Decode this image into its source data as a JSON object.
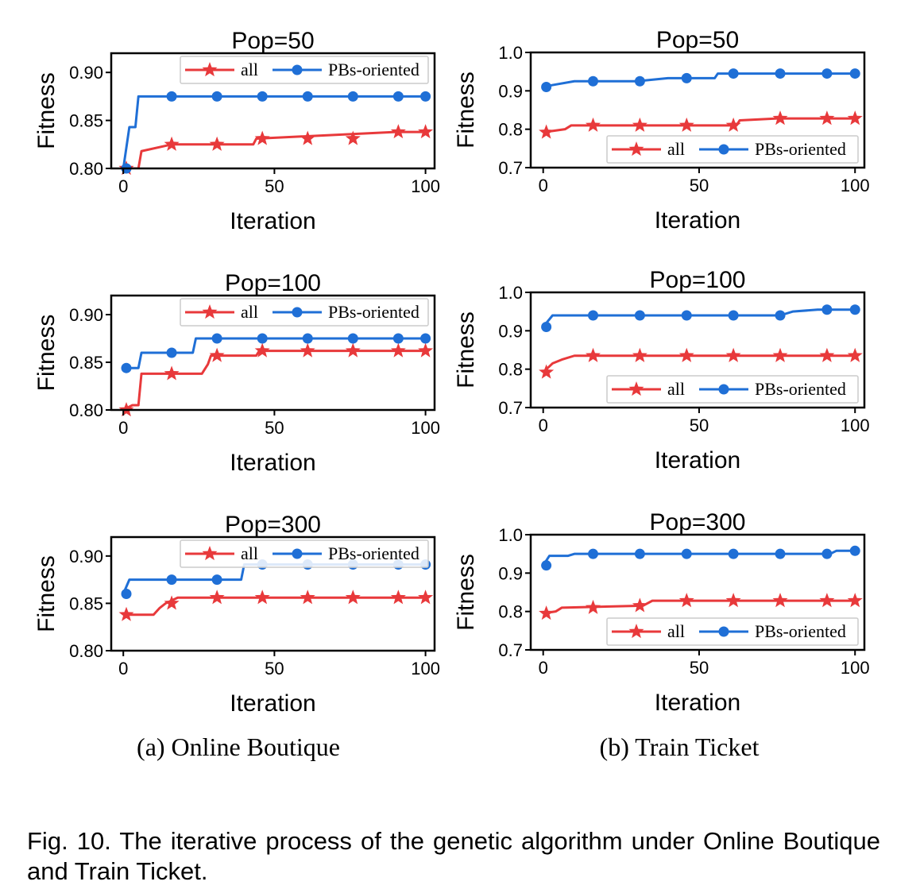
{
  "figure": {
    "caption": "Fig. 10. The iterative process of the genetic algorithm under Online Boutique and Train Ticket.",
    "sub_captions": [
      "(a) Online Boutique",
      "(b) Train Ticket"
    ]
  },
  "colors": {
    "all": "#e8393b",
    "pbs": "#1f6fd6"
  },
  "chart_data": [
    {
      "type": "line",
      "title": "Pop=50",
      "xlabel": "Iteration",
      "ylabel": "Fitness",
      "xlim": [
        -4,
        103
      ],
      "ylim": [
        0.8,
        0.92
      ],
      "xticks": [
        0,
        50,
        100
      ],
      "xtick_labels": [
        "0",
        "50",
        "100"
      ],
      "yticks": [
        0.8,
        0.85,
        0.9
      ],
      "ytick_labels": [
        "0.80",
        "0.85",
        "0.90"
      ],
      "legend": "top-right",
      "series": [
        {
          "name": "all",
          "marker": "star",
          "x": [
            0,
            5,
            6,
            16,
            30,
            43,
            44,
            90,
            100
          ],
          "y": [
            0.8,
            0.8,
            0.818,
            0.825,
            0.825,
            0.825,
            0.831,
            0.838,
            0.838
          ],
          "marker_x": [
            1,
            16,
            31,
            46,
            61,
            76,
            91,
            100
          ],
          "marker_y": [
            0.8,
            0.825,
            0.825,
            0.831,
            0.831,
            0.831,
            0.838,
            0.838
          ]
        },
        {
          "name": "PBs-oriented",
          "marker": "circle",
          "x": [
            0,
            2,
            4,
            5,
            100
          ],
          "y": [
            0.8,
            0.843,
            0.843,
            0.875,
            0.875
          ],
          "marker_x": [
            1,
            16,
            31,
            46,
            61,
            76,
            91,
            100
          ],
          "marker_y": [
            0.8,
            0.875,
            0.875,
            0.875,
            0.875,
            0.875,
            0.875,
            0.875
          ]
        }
      ]
    },
    {
      "type": "line",
      "title": "Pop=50",
      "xlabel": "Iteration",
      "ylabel": "Fitness",
      "xlim": [
        -4,
        103
      ],
      "ylim": [
        0.7,
        1.0
      ],
      "xticks": [
        0,
        50,
        100
      ],
      "xtick_labels": [
        "0",
        "50",
        "100"
      ],
      "yticks": [
        0.7,
        0.8,
        0.9,
        1.0
      ],
      "ytick_labels": [
        "0.7",
        "0.8",
        "0.9",
        "1.0"
      ],
      "legend": "bottom-right",
      "series": [
        {
          "name": "all",
          "marker": "star",
          "x": [
            0,
            7,
            9,
            62,
            63,
            75,
            100
          ],
          "y": [
            0.792,
            0.8,
            0.81,
            0.81,
            0.823,
            0.828,
            0.828
          ],
          "marker_x": [
            1,
            16,
            31,
            46,
            61,
            76,
            91,
            100
          ],
          "marker_y": [
            0.792,
            0.81,
            0.81,
            0.81,
            0.81,
            0.828,
            0.828,
            0.828
          ]
        },
        {
          "name": "PBs-oriented",
          "marker": "circle",
          "x": [
            0,
            3,
            10,
            30,
            40,
            55,
            56,
            100
          ],
          "y": [
            0.91,
            0.915,
            0.925,
            0.925,
            0.933,
            0.933,
            0.945,
            0.945
          ],
          "marker_x": [
            1,
            16,
            31,
            46,
            61,
            76,
            91,
            100
          ],
          "marker_y": [
            0.91,
            0.925,
            0.925,
            0.933,
            0.945,
            0.945,
            0.945,
            0.945
          ]
        }
      ]
    },
    {
      "type": "line",
      "title": "Pop=100",
      "xlabel": "Iteration",
      "ylabel": "Fitness",
      "xlim": [
        -4,
        103
      ],
      "ylim": [
        0.8,
        0.92
      ],
      "xticks": [
        0,
        50,
        100
      ],
      "xtick_labels": [
        "0",
        "50",
        "100"
      ],
      "yticks": [
        0.8,
        0.85,
        0.9
      ],
      "ytick_labels": [
        "0.80",
        "0.85",
        "0.90"
      ],
      "legend": "top-right",
      "series": [
        {
          "name": "all",
          "marker": "star",
          "x": [
            0,
            3,
            5,
            6,
            26,
            28,
            29,
            44,
            45,
            100
          ],
          "y": [
            0.8,
            0.805,
            0.805,
            0.838,
            0.838,
            0.848,
            0.857,
            0.857,
            0.862,
            0.862
          ],
          "marker_x": [
            1,
            16,
            31,
            46,
            61,
            76,
            91,
            100
          ],
          "marker_y": [
            0.8,
            0.838,
            0.857,
            0.862,
            0.862,
            0.862,
            0.862,
            0.862
          ]
        },
        {
          "name": "PBs-oriented",
          "marker": "circle",
          "x": [
            0,
            5,
            6,
            23,
            24,
            100
          ],
          "y": [
            0.844,
            0.844,
            0.86,
            0.86,
            0.875,
            0.875
          ],
          "marker_x": [
            1,
            16,
            31,
            46,
            61,
            76,
            91,
            100
          ],
          "marker_y": [
            0.844,
            0.86,
            0.875,
            0.875,
            0.875,
            0.875,
            0.875,
            0.875
          ]
        }
      ]
    },
    {
      "type": "line",
      "title": "Pop=100",
      "xlabel": "Iteration",
      "ylabel": "Fitness",
      "xlim": [
        -4,
        103
      ],
      "ylim": [
        0.7,
        1.0
      ],
      "xticks": [
        0,
        50,
        100
      ],
      "xtick_labels": [
        "0",
        "50",
        "100"
      ],
      "yticks": [
        0.7,
        0.8,
        0.9,
        1.0
      ],
      "ytick_labels": [
        "0.7",
        "0.8",
        "0.9",
        "1.0"
      ],
      "legend": "bottom-right",
      "series": [
        {
          "name": "all",
          "marker": "star",
          "x": [
            0,
            3,
            6,
            10,
            100
          ],
          "y": [
            0.792,
            0.815,
            0.825,
            0.835,
            0.835
          ],
          "marker_x": [
            1,
            16,
            31,
            46,
            61,
            76,
            91,
            100
          ],
          "marker_y": [
            0.792,
            0.835,
            0.835,
            0.835,
            0.835,
            0.835,
            0.835,
            0.835
          ]
        },
        {
          "name": "PBs-oriented",
          "marker": "circle",
          "x": [
            0,
            3,
            76,
            80,
            88,
            100
          ],
          "y": [
            0.91,
            0.94,
            0.94,
            0.95,
            0.955,
            0.955
          ],
          "marker_x": [
            1,
            16,
            31,
            46,
            61,
            76,
            91,
            100
          ],
          "marker_y": [
            0.91,
            0.94,
            0.94,
            0.94,
            0.94,
            0.94,
            0.955,
            0.955
          ]
        }
      ]
    },
    {
      "type": "line",
      "title": "Pop=300",
      "xlabel": "Iteration",
      "ylabel": "Fitness",
      "xlim": [
        -4,
        103
      ],
      "ylim": [
        0.8,
        0.92
      ],
      "xticks": [
        0,
        50,
        100
      ],
      "xtick_labels": [
        "0",
        "50",
        "100"
      ],
      "yticks": [
        0.8,
        0.85,
        0.9
      ],
      "ytick_labels": [
        "0.80",
        "0.85",
        "0.90"
      ],
      "legend": "top-right",
      "series": [
        {
          "name": "all",
          "marker": "star",
          "x": [
            0,
            10,
            12,
            14,
            18,
            100
          ],
          "y": [
            0.838,
            0.838,
            0.845,
            0.85,
            0.856,
            0.856
          ],
          "marker_x": [
            1,
            16,
            31,
            46,
            61,
            76,
            91,
            100
          ],
          "marker_y": [
            0.838,
            0.85,
            0.856,
            0.856,
            0.856,
            0.856,
            0.856,
            0.856
          ]
        },
        {
          "name": "PBs-oriented",
          "marker": "circle",
          "x": [
            0,
            2,
            39,
            40,
            100
          ],
          "y": [
            0.86,
            0.875,
            0.875,
            0.891,
            0.891
          ],
          "marker_x": [
            1,
            16,
            31,
            46,
            61,
            76,
            91,
            100
          ],
          "marker_y": [
            0.86,
            0.875,
            0.875,
            0.891,
            0.891,
            0.891,
            0.891,
            0.891
          ]
        }
      ]
    },
    {
      "type": "line",
      "title": "Pop=300",
      "xlabel": "Iteration",
      "ylabel": "Fitness",
      "xlim": [
        -4,
        103
      ],
      "ylim": [
        0.7,
        1.0
      ],
      "xticks": [
        0,
        50,
        100
      ],
      "xtick_labels": [
        "0",
        "50",
        "100"
      ],
      "yticks": [
        0.7,
        0.8,
        0.9,
        1.0
      ],
      "ytick_labels": [
        "0.7",
        "0.8",
        "0.9",
        "1.0"
      ],
      "legend": "bottom-right",
      "series": [
        {
          "name": "all",
          "marker": "star",
          "x": [
            0,
            4,
            6,
            32,
            35,
            100
          ],
          "y": [
            0.795,
            0.8,
            0.81,
            0.815,
            0.828,
            0.828
          ],
          "marker_x": [
            1,
            16,
            31,
            46,
            61,
            76,
            91,
            100
          ],
          "marker_y": [
            0.795,
            0.81,
            0.815,
            0.828,
            0.828,
            0.828,
            0.828,
            0.828
          ]
        },
        {
          "name": "PBs-oriented",
          "marker": "circle",
          "x": [
            0,
            2,
            8,
            10,
            92,
            94,
            100
          ],
          "y": [
            0.92,
            0.945,
            0.945,
            0.95,
            0.95,
            0.958,
            0.958
          ],
          "marker_x": [
            1,
            16,
            31,
            46,
            61,
            76,
            91,
            100
          ],
          "marker_y": [
            0.92,
            0.95,
            0.95,
            0.95,
            0.95,
            0.95,
            0.95,
            0.958
          ]
        }
      ]
    }
  ]
}
